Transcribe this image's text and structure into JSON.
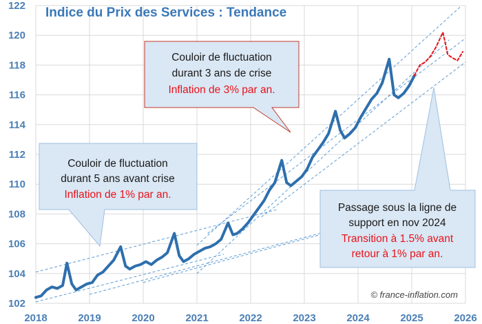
{
  "chart_data": {
    "type": "line",
    "title": "Indice du Prix des Services : Tendance",
    "credit": "© france-inflation.com",
    "x_ticks": [
      "2018",
      "2019",
      "2020",
      "2021",
      "2022",
      "2023",
      "2024",
      "2025",
      "2026"
    ],
    "y_ticks": [
      "102",
      "104",
      "106",
      "108",
      "110",
      "112",
      "114",
      "116",
      "118",
      "120",
      "122"
    ],
    "xlim": [
      2018,
      2026
    ],
    "ylim": [
      102,
      122
    ],
    "grid": true,
    "colors": {
      "actual": "#2e6fad",
      "forecast": "#e8121a",
      "channel": "#5b9bd5",
      "box_fill": "#dae7f4",
      "box_border": "#9dbfe0",
      "red_box_border": "#c0392b"
    },
    "series": [
      {
        "style": "solid",
        "x": [
          2018.0,
          2018.1,
          2018.2,
          2018.3,
          2018.4,
          2018.5,
          2018.58,
          2018.67,
          2018.75,
          2018.85,
          2018.95,
          2019.05,
          2019.15,
          2019.25,
          2019.35,
          2019.45,
          2019.58,
          2019.67,
          2019.75,
          2019.85,
          2019.95,
          2020.05,
          2020.15,
          2020.25,
          2020.35,
          2020.45,
          2020.58,
          2020.67,
          2020.75,
          2020.85,
          2020.95,
          2021.05,
          2021.15,
          2021.25,
          2021.35,
          2021.45,
          2021.58,
          2021.67,
          2021.75,
          2021.85,
          2021.95,
          2022.05,
          2022.15,
          2022.25,
          2022.35,
          2022.45,
          2022.58,
          2022.67,
          2022.75,
          2022.85,
          2022.95,
          2023.05,
          2023.15,
          2023.25,
          2023.35,
          2023.45,
          2023.58,
          2023.67,
          2023.75,
          2023.85,
          2023.95,
          2024.05,
          2024.15,
          2024.25,
          2024.35,
          2024.45,
          2024.58,
          2024.67,
          2024.75,
          2024.85,
          2024.95,
          2025.05
        ],
        "y": [
          102.4,
          102.5,
          102.9,
          103.1,
          103.0,
          103.2,
          104.7,
          103.3,
          102.9,
          103.1,
          103.3,
          103.4,
          103.9,
          104.1,
          104.5,
          104.9,
          105.8,
          104.5,
          104.3,
          104.5,
          104.6,
          104.8,
          104.6,
          104.9,
          105.1,
          105.4,
          106.7,
          105.2,
          104.8,
          105.0,
          105.3,
          105.5,
          105.7,
          105.8,
          106.0,
          106.3,
          107.4,
          106.6,
          106.7,
          107.0,
          107.4,
          107.9,
          108.4,
          108.9,
          109.6,
          110.1,
          111.6,
          110.1,
          109.9,
          110.2,
          110.5,
          111.0,
          111.8,
          112.3,
          112.8,
          113.4,
          114.9,
          113.6,
          113.1,
          113.4,
          113.8,
          114.5,
          115.1,
          115.7,
          116.1,
          116.8,
          118.4,
          116.0,
          115.8,
          116.1,
          116.6,
          117.3
        ]
      },
      {
        "style": "dashed",
        "x": [
          2025.05,
          2025.15,
          2025.25,
          2025.35,
          2025.45,
          2025.58,
          2025.67,
          2025.75,
          2025.85,
          2025.95
        ],
        "y": [
          117.3,
          118.0,
          118.2,
          118.6,
          119.2,
          120.2,
          118.7,
          118.5,
          118.3,
          118.9
        ]
      }
    ],
    "callouts": [
      {
        "line1": "Couloir de fluctuation",
        "line2": "durant 3 ans de crise",
        "line3": "Inflation de 3% par an."
      },
      {
        "line1": "Couloir de fluctuation",
        "line2": "durant 5 ans avant crise",
        "line3": "Inflation de 1% par an."
      },
      {
        "line1": "Passage sous la ligne de",
        "line2": "support en nov 2024",
        "line3": "Transition à 1.5% avant",
        "line4": "retour à 1% par an."
      }
    ]
  }
}
